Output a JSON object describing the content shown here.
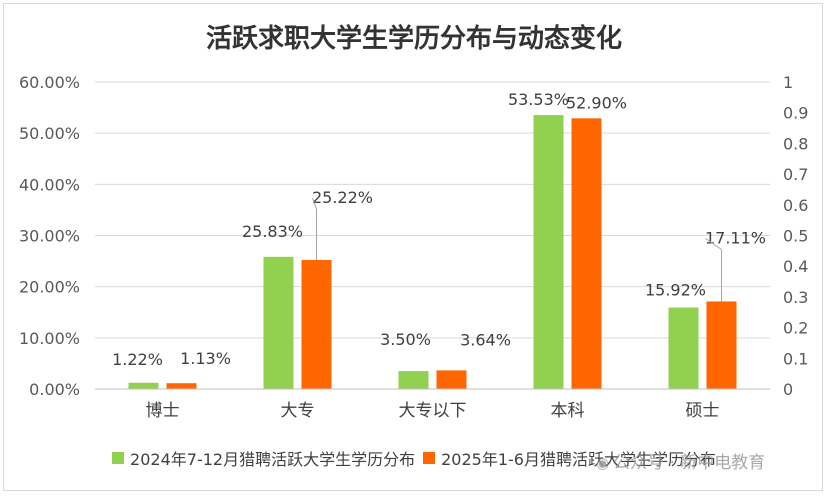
{
  "chart_data": {
    "type": "bar",
    "title": "活跃求职大学生学历分布与动态变化",
    "categories": [
      "博士",
      "大专",
      "大专以下",
      "本科",
      "硕士"
    ],
    "series": [
      {
        "name": "2024年7-12月猎聘活跃大学生学历分布",
        "values": [
          1.22,
          25.83,
          3.5,
          53.53,
          15.92
        ],
        "labels": [
          "1.22%",
          "25.83%",
          "3.50%",
          "53.53%",
          "15.92%"
        ],
        "color": "#92d050"
      },
      {
        "name": "2025年1-6月猎聘活跃大学生学历分布",
        "values": [
          1.13,
          25.22,
          3.64,
          52.9,
          17.11
        ],
        "labels": [
          "1.13%",
          "25.22%",
          "3.64%",
          "52.90%",
          "17.11%"
        ],
        "color": "#ff6600"
      }
    ],
    "ylim": [
      0,
      60
    ],
    "y_ticks": [
      "0.00%",
      "10.00%",
      "20.00%",
      "30.00%",
      "40.00%",
      "50.00%",
      "60.00%"
    ],
    "y2lim": [
      0,
      1
    ],
    "y2_ticks": [
      "0",
      "0.1",
      "0.2",
      "0.3",
      "0.4",
      "0.5",
      "0.6",
      "0.7",
      "0.8",
      "0.9",
      "1"
    ],
    "grid": true,
    "legend_position": "bottom"
  },
  "watermark": {
    "icon": "wechat-icon",
    "text": "公众号 · 新中电教育"
  }
}
